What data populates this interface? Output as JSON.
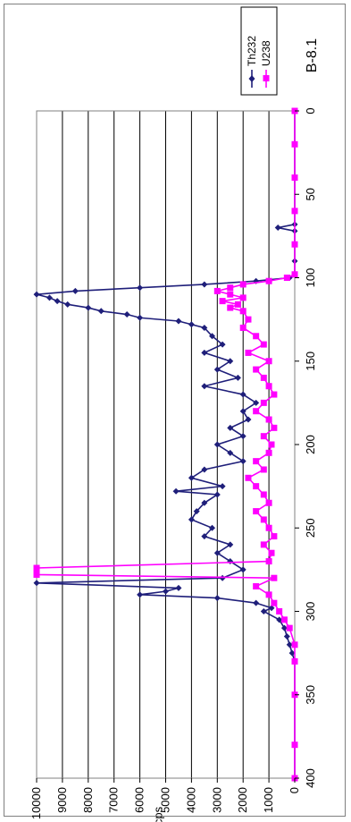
{
  "chart_data": {
    "type": "line",
    "orientation": "rotated-90-ccw",
    "title": "B-8.1",
    "xlabel": "",
    "ylabel": "cps",
    "xlim": [
      0,
      400
    ],
    "ylim": [
      0,
      10000
    ],
    "xticks": [
      "0",
      "50",
      "100",
      "150",
      "200",
      "250",
      "300",
      "350",
      "400"
    ],
    "yticks": [
      "0",
      "1000",
      "2000",
      "3000",
      "4000",
      "5000",
      "6000",
      "7000",
      "8000",
      "9000",
      "10000"
    ],
    "grid": "horizontal-major",
    "legend_position": "right",
    "series": [
      {
        "name": "Th232",
        "color": "#1f1f7a",
        "marker": "diamond",
        "x": [
          0,
          20,
          40,
          60,
          68,
          70,
          72,
          80,
          90,
          98,
          100,
          102,
          104,
          106,
          108,
          110,
          112,
          114,
          116,
          118,
          120,
          122,
          124,
          126,
          128,
          130,
          135,
          140,
          145,
          150,
          155,
          160,
          165,
          170,
          175,
          180,
          185,
          190,
          195,
          200,
          205,
          210,
          215,
          220,
          225,
          228,
          230,
          235,
          240,
          245,
          250,
          255,
          260,
          265,
          270,
          275,
          280,
          283,
          286,
          288,
          290,
          292,
          295,
          298,
          300,
          305,
          310,
          315,
          320,
          325,
          330,
          350,
          380,
          400
        ],
        "y": [
          0,
          0,
          0,
          0,
          0,
          650,
          0,
          0,
          0,
          0,
          200,
          1500,
          3500,
          6000,
          8500,
          10000,
          9500,
          9200,
          8800,
          8000,
          7500,
          6500,
          6000,
          4500,
          4000,
          3500,
          3200,
          2800,
          3500,
          2500,
          3000,
          2200,
          3500,
          2000,
          1500,
          2000,
          1800,
          2500,
          2000,
          3000,
          2500,
          2000,
          3500,
          4000,
          2800,
          4600,
          3000,
          3500,
          3800,
          4000,
          3200,
          3500,
          2500,
          3000,
          2500,
          2000,
          2800,
          10000,
          4500,
          5000,
          6000,
          3000,
          1500,
          900,
          1200,
          600,
          400,
          300,
          200,
          100,
          0,
          0,
          0,
          0
        ]
      },
      {
        "name": "U238",
        "color": "#ff00ff",
        "marker": "square",
        "x": [
          0,
          20,
          40,
          60,
          80,
          98,
          100,
          102,
          104,
          106,
          108,
          110,
          112,
          114,
          116,
          118,
          120,
          125,
          130,
          135,
          140,
          145,
          150,
          155,
          160,
          165,
          170,
          175,
          180,
          185,
          190,
          195,
          200,
          205,
          210,
          215,
          220,
          225,
          230,
          235,
          240,
          245,
          250,
          255,
          260,
          265,
          270,
          274,
          276,
          278,
          280,
          285,
          290,
          295,
          300,
          305,
          310,
          320,
          330,
          350,
          380,
          400
        ],
        "y": [
          0,
          0,
          0,
          0,
          0,
          0,
          300,
          1000,
          2000,
          2500,
          3000,
          2500,
          2000,
          2800,
          2200,
          2500,
          2000,
          1800,
          2000,
          1500,
          1200,
          1800,
          1000,
          1500,
          1200,
          1000,
          800,
          1200,
          1500,
          1000,
          800,
          1200,
          900,
          1000,
          1500,
          1200,
          1800,
          1500,
          1200,
          1000,
          1500,
          1200,
          1000,
          800,
          1200,
          900,
          1000,
          10000,
          10000,
          10000,
          800,
          1500,
          1000,
          800,
          600,
          400,
          200,
          0,
          0,
          0,
          0,
          0
        ]
      }
    ]
  }
}
